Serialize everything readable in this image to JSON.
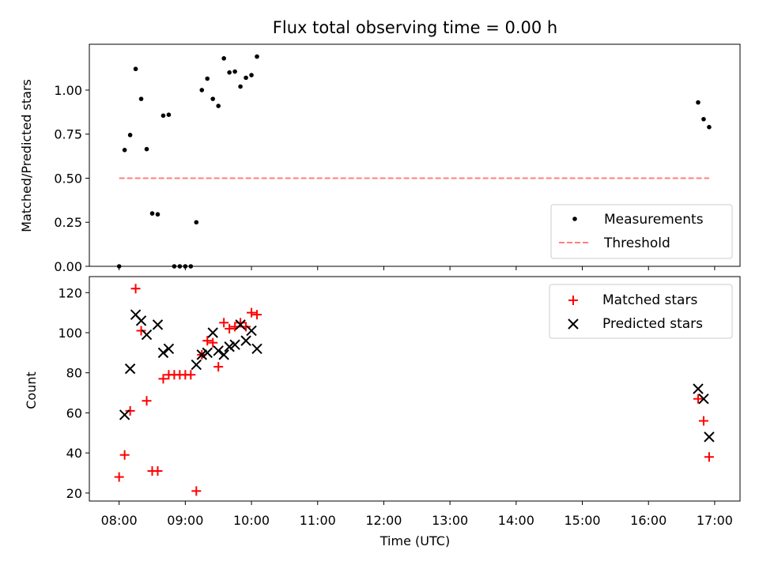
{
  "chart_data": [
    {
      "type": "scatter",
      "title": "Flux total observing time = 0.00 h",
      "ylabel": "Matched/Predicted stars",
      "xlabel": "",
      "ylim": [
        0,
        1.26
      ],
      "yticks": [
        "0.00",
        "0.25",
        "0.50",
        "0.75",
        "1.00"
      ],
      "ytick_values": [
        0,
        0.25,
        0.5,
        0.75,
        1.0
      ],
      "legend": "bottom-right",
      "grid": false,
      "series": [
        {
          "name": "Measurements",
          "marker": "dot",
          "color": "#000000",
          "points": [
            [
              "08:00",
              0.0
            ],
            [
              "08:05",
              0.66
            ],
            [
              "08:10",
              0.745
            ],
            [
              "08:15",
              1.12
            ],
            [
              "08:20",
              0.95
            ],
            [
              "08:25",
              0.665
            ],
            [
              "08:30",
              0.3
            ],
            [
              "08:35",
              0.295
            ],
            [
              "08:40",
              0.855
            ],
            [
              "08:45",
              0.86
            ],
            [
              "08:50",
              0.0
            ],
            [
              "08:55",
              0.0
            ],
            [
              "09:00",
              0.0
            ],
            [
              "09:05",
              0.0
            ],
            [
              "09:10",
              0.25
            ],
            [
              "09:15",
              1.0
            ],
            [
              "09:20",
              1.065
            ],
            [
              "09:25",
              0.95
            ],
            [
              "09:30",
              0.91
            ],
            [
              "09:35",
              1.18
            ],
            [
              "09:40",
              1.1
            ],
            [
              "09:45",
              1.105
            ],
            [
              "09:50",
              1.02
            ],
            [
              "09:55",
              1.07
            ],
            [
              "10:00",
              1.085
            ],
            [
              "10:05",
              1.19
            ],
            [
              "16:45",
              0.93
            ],
            [
              "16:50",
              0.835
            ],
            [
              "16:55",
              0.79
            ]
          ]
        },
        {
          "name": "Threshold",
          "marker": "dashed-line",
          "color": "#ff7f7f",
          "x": [
            "08:00",
            "16:55"
          ],
          "y": [
            0.5,
            0.5
          ]
        }
      ]
    },
    {
      "type": "scatter",
      "title": "",
      "ylabel": "Count",
      "xlabel": "Time (UTC)",
      "ylim": [
        16,
        128
      ],
      "yticks": [
        "20",
        "40",
        "60",
        "80",
        "100",
        "120"
      ],
      "ytick_values": [
        20,
        40,
        60,
        80,
        100,
        120
      ],
      "xlim": [
        "07:33",
        "17:23"
      ],
      "xticks": [
        "08:00",
        "09:00",
        "10:00",
        "11:00",
        "12:00",
        "13:00",
        "14:00",
        "15:00",
        "16:00",
        "17:00"
      ],
      "legend": "top-right",
      "grid": false,
      "series": [
        {
          "name": "Matched stars",
          "marker": "plus",
          "color": "#ff0000",
          "points": [
            [
              "08:00",
              28
            ],
            [
              "08:05",
              39
            ],
            [
              "08:10",
              61
            ],
            [
              "08:15",
              122
            ],
            [
              "08:20",
              101
            ],
            [
              "08:25",
              66
            ],
            [
              "08:30",
              31
            ],
            [
              "08:35",
              31
            ],
            [
              "08:40",
              77
            ],
            [
              "08:45",
              79
            ],
            [
              "08:50",
              79
            ],
            [
              "08:55",
              79
            ],
            [
              "09:00",
              79
            ],
            [
              "09:05",
              79
            ],
            [
              "09:10",
              21
            ],
            [
              "09:15",
              89
            ],
            [
              "09:20",
              96
            ],
            [
              "09:25",
              95
            ],
            [
              "09:30",
              83
            ],
            [
              "09:35",
              105
            ],
            [
              "09:40",
              102
            ],
            [
              "09:45",
              103
            ],
            [
              "09:50",
              105
            ],
            [
              "09:55",
              103
            ],
            [
              "10:00",
              110
            ],
            [
              "10:05",
              109
            ],
            [
              "16:45",
              67
            ],
            [
              "16:50",
              56
            ],
            [
              "16:55",
              38
            ]
          ]
        },
        {
          "name": "Predicted stars",
          "marker": "x",
          "color": "#000000",
          "points": [
            [
              "08:05",
              59
            ],
            [
              "08:10",
              82
            ],
            [
              "08:15",
              109
            ],
            [
              "08:20",
              106
            ],
            [
              "08:25",
              99
            ],
            [
              "08:35",
              104
            ],
            [
              "08:40",
              90
            ],
            [
              "08:45",
              92
            ],
            [
              "09:10",
              84
            ],
            [
              "09:15",
              89
            ],
            [
              "09:20",
              90
            ],
            [
              "09:25",
              100
            ],
            [
              "09:30",
              91
            ],
            [
              "09:35",
              89
            ],
            [
              "09:40",
              93
            ],
            [
              "09:45",
              94
            ],
            [
              "09:50",
              104
            ],
            [
              "09:55",
              96
            ],
            [
              "10:00",
              101
            ],
            [
              "10:05",
              92
            ],
            [
              "16:45",
              72
            ],
            [
              "16:50",
              67
            ],
            [
              "16:55",
              48
            ]
          ]
        }
      ]
    }
  ]
}
